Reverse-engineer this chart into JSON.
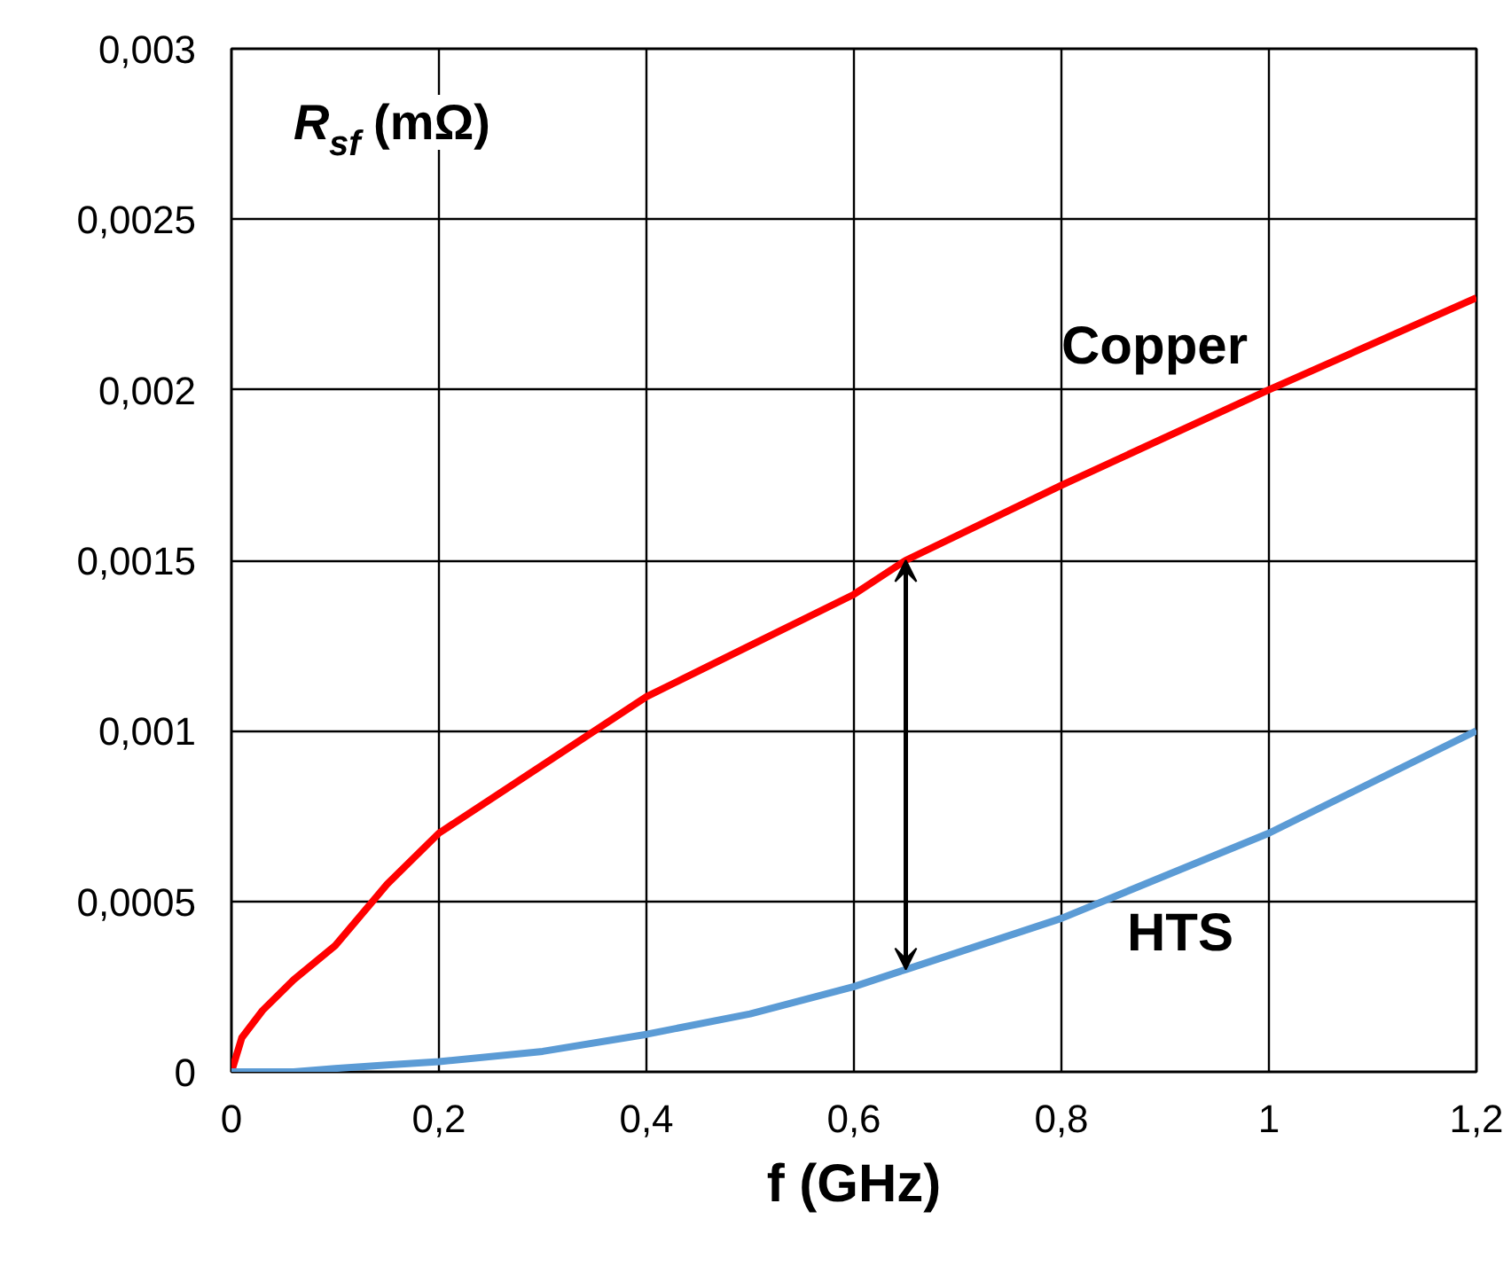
{
  "chart_data": {
    "type": "line",
    "xlabel": "f (GHz)",
    "ylabel": "R$_{sf}$ (mΩ)",
    "x": [
      0,
      0.01,
      0.03,
      0.06,
      0.1,
      0.15,
      0.2,
      0.3,
      0.4,
      0.5,
      0.6,
      0.65,
      0.8,
      1.0,
      1.2
    ],
    "series": [
      {
        "name": "Copper",
        "color": "#ff0000",
        "values": [
          0,
          0.0001,
          0.00018,
          0.00027,
          0.00037,
          0.00055,
          0.0007,
          0.0009,
          0.0011,
          0.00125,
          0.0014,
          0.0015,
          0.00172,
          0.002,
          0.00227
        ]
      },
      {
        "name": "HTS",
        "color": "#5b9bd5",
        "values": [
          0,
          0,
          0,
          0,
          1e-05,
          2e-05,
          3e-05,
          6e-05,
          0.00011,
          0.00017,
          0.00025,
          0.0003,
          0.00045,
          0.0007,
          0.001
        ]
      }
    ],
    "xlim": [
      0,
      1.2
    ],
    "ylim": [
      0,
      0.003
    ],
    "xticks": [
      0,
      {
        "value": 0.2,
        "label": "0,2"
      },
      {
        "value": 0.4,
        "label": "0,4"
      },
      {
        "value": 0.6,
        "label": "0,6"
      },
      {
        "value": 0.8,
        "label": "0,8"
      },
      1,
      {
        "value": 1.2,
        "label": "1,2"
      }
    ],
    "yticks": [
      0,
      {
        "value": 0.0005,
        "label": "0,0005"
      },
      {
        "value": 0.001,
        "label": "0,001"
      },
      {
        "value": 0.0015,
        "label": "0,0015"
      },
      {
        "value": 0.002,
        "label": "0,002"
      },
      {
        "value": 0.0025,
        "label": "0,0025"
      },
      {
        "value": 0.003,
        "label": "0,003"
      }
    ],
    "grid": true,
    "marker": "none",
    "line_style": "solid"
  }
}
